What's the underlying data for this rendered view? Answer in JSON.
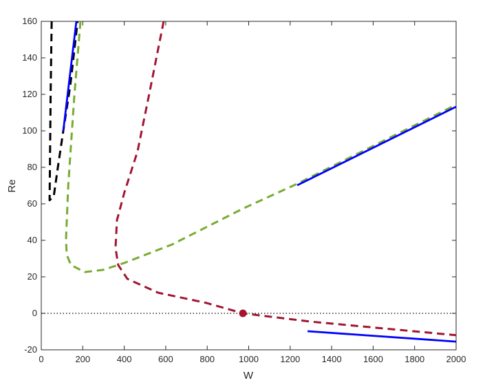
{
  "chart_data": {
    "type": "line",
    "xlabel": "W",
    "ylabel": "Re",
    "xlim": [
      0,
      2000
    ],
    "xticks": [
      0,
      200,
      400,
      600,
      800,
      1000,
      1200,
      1400,
      1600,
      1800,
      2000
    ],
    "ylim": [
      -20,
      160
    ],
    "yticks": [
      -20,
      0,
      20,
      40,
      60,
      80,
      100,
      120,
      140,
      160
    ],
    "reference_line": 0,
    "series": [
      {
        "color": "#000000",
        "style": "dashed",
        "x": [
          50,
          45,
          40,
          60,
          80,
          106,
          140,
          175
        ],
        "values": [
          160,
          120,
          62,
          64,
          80,
          100,
          125,
          160
        ]
      },
      {
        "color": "#77ac30",
        "style": "dashed",
        "x": [
          189,
          160,
          130,
          119,
          123,
          143,
          209,
          298,
          398,
          630,
          978,
          1227,
          2000
        ],
        "values": [
          160,
          120,
          70,
          40,
          32,
          26.5,
          22.6,
          23.8,
          27.5,
          37.7,
          57.7,
          70.6,
          114.3
        ]
      },
      {
        "color": "#a2142f",
        "style": "dashed",
        "x": [
          590,
          520,
          464,
          400,
          365,
          358,
          371,
          415,
          564,
          796,
          972,
          1294,
          2000
        ],
        "values": [
          160,
          120,
          88.7,
          66,
          51,
          35.8,
          26.4,
          18.9,
          11.3,
          5.7,
          0,
          -4.5,
          -12
        ]
      },
      {
        "color": "#0000ff",
        "style": "solid",
        "x": [
          106,
          169
        ],
        "values": [
          100,
          160
        ]
      },
      {
        "color": "#0000ff",
        "style": "solid",
        "x": [
          1234,
          2000
        ],
        "values": [
          70.2,
          113.2
        ]
      },
      {
        "color": "#0000ff",
        "style": "solid",
        "x": [
          1284,
          2000
        ],
        "values": [
          -9.8,
          -15.5
        ]
      },
      {
        "color": "#a2142f",
        "style": "marker",
        "x": [
          972
        ],
        "values": [
          0
        ]
      }
    ]
  }
}
